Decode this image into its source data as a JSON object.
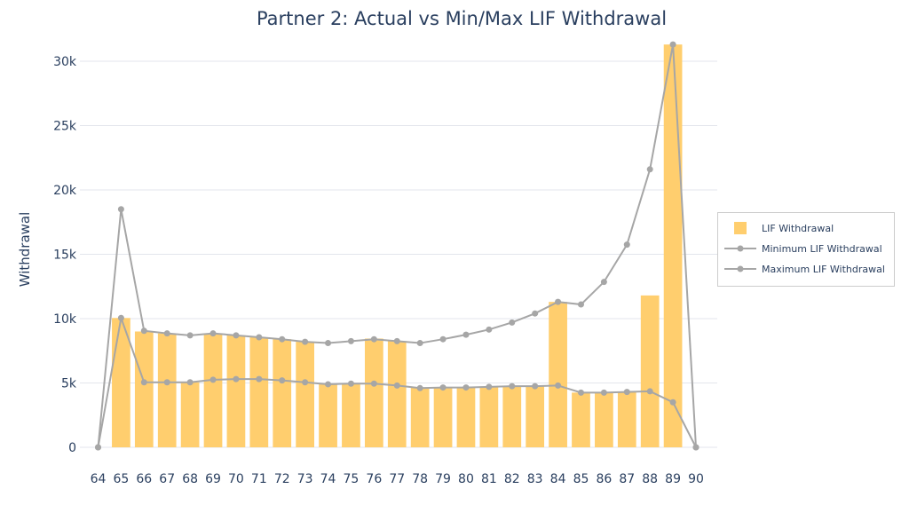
{
  "chart_data": {
    "type": "bar",
    "title": "Partner 2: Actual vs Min/Max LIF Withdrawal",
    "xlabel": "",
    "ylabel": "Withdrawal",
    "x": [
      64,
      65,
      66,
      67,
      68,
      69,
      70,
      71,
      72,
      73,
      74,
      75,
      76,
      77,
      78,
      79,
      80,
      81,
      82,
      83,
      84,
      85,
      86,
      87,
      88,
      89,
      90
    ],
    "ylim": [
      0,
      32000
    ],
    "yticks": [
      0,
      5000,
      10000,
      15000,
      20000,
      25000,
      30000
    ],
    "ytick_labels": [
      "0",
      "5k",
      "10k",
      "15k",
      "20k",
      "25k",
      "30k"
    ],
    "grid": "horizontal",
    "legend_position": "right",
    "series": [
      {
        "name": "LIF Withdrawal",
        "kind": "bar",
        "color": "#ffce6e",
        "values": [
          0,
          10050,
          9000,
          8850,
          5050,
          8850,
          8700,
          8550,
          8400,
          8200,
          4900,
          4950,
          8450,
          8250,
          4650,
          4650,
          4650,
          4700,
          4750,
          4800,
          11300,
          4250,
          4250,
          4300,
          11800,
          31300,
          0
        ]
      },
      {
        "name": "Minimum LIF Withdrawal",
        "kind": "line",
        "color": "#a6a6a6",
        "values": [
          0,
          10050,
          5050,
          5050,
          5050,
          5250,
          5300,
          5300,
          5200,
          5050,
          4900,
          4950,
          4950,
          4800,
          4600,
          4650,
          4650,
          4700,
          4750,
          4750,
          4800,
          4250,
          4250,
          4300,
          4350,
          3500,
          0
        ]
      },
      {
        "name": "Maximum LIF Withdrawal",
        "kind": "line",
        "color": "#a6a6a6",
        "values": [
          0,
          18500,
          9050,
          8850,
          8700,
          8850,
          8700,
          8550,
          8400,
          8200,
          8100,
          8250,
          8400,
          8250,
          8100,
          8400,
          8750,
          9150,
          9700,
          10400,
          11300,
          11100,
          12850,
          15750,
          21600,
          31300,
          0
        ]
      }
    ]
  }
}
